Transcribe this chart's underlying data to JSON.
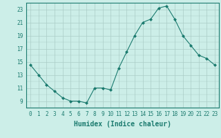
{
  "x": [
    0,
    1,
    2,
    3,
    4,
    5,
    6,
    7,
    8,
    9,
    10,
    11,
    12,
    13,
    14,
    15,
    16,
    17,
    18,
    19,
    20,
    21,
    22,
    23
  ],
  "y": [
    14.5,
    13.0,
    11.5,
    10.5,
    9.5,
    9.0,
    9.0,
    8.7,
    11.0,
    11.0,
    10.7,
    14.0,
    16.5,
    19.0,
    21.0,
    21.5,
    23.2,
    23.5,
    21.5,
    19.0,
    17.5,
    16.0,
    15.5,
    14.5
  ],
  "xlabel": "Humidex (Indice chaleur)",
  "xlim": [
    -0.5,
    23.5
  ],
  "ylim": [
    8.0,
    24.0
  ],
  "yticks": [
    9,
    11,
    13,
    15,
    17,
    19,
    21,
    23
  ],
  "xticks": [
    0,
    1,
    2,
    3,
    4,
    5,
    6,
    7,
    8,
    9,
    10,
    11,
    12,
    13,
    14,
    15,
    16,
    17,
    18,
    19,
    20,
    21,
    22,
    23
  ],
  "line_color": "#1a7a6e",
  "marker": "D",
  "marker_size": 2.0,
  "bg_color": "#cceee8",
  "grid_color": "#aaccc6",
  "font_color": "#1a7a6e",
  "tick_fontsize": 5.5,
  "xlabel_fontsize": 7.0
}
